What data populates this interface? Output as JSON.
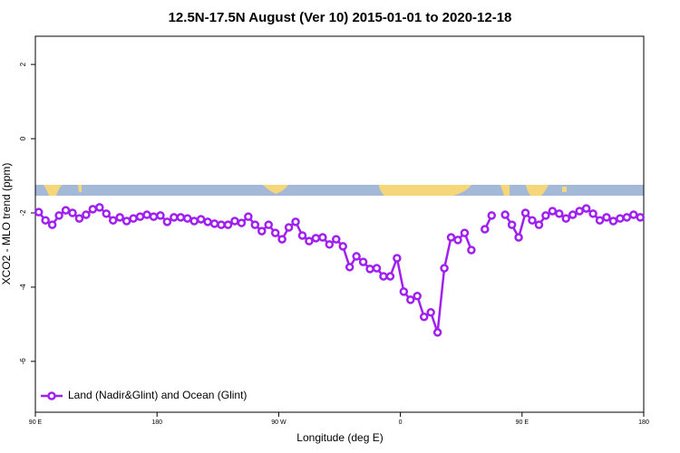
{
  "chart_data": {
    "type": "line",
    "title": "12.5N-17.5N August (Ver 10)   2015-01-01 to 2020-12-18",
    "x_label": "Longitude (deg E)",
    "y_label": "XCO2 - MLO trend (ppm)",
    "xlim": [
      90,
      540
    ],
    "ylim": [
      -7.37,
      2.76
    ],
    "xticks": [
      {
        "value": 90,
        "label": "90 E"
      },
      180,
      {
        "value": 270,
        "label": "90 W"
      },
      {
        "value": 360,
        "label": "0"
      },
      {
        "value": 450,
        "label": "90 E"
      },
      {
        "value": 540,
        "label": "180"
      }
    ],
    "yticks": [
      -6,
      -4,
      -2,
      0,
      2
    ],
    "legend_position": "bottomleft",
    "x": [
      92.5,
      97.5,
      102.5,
      107.5,
      112.5,
      117.5,
      122.5,
      127.5,
      132.5,
      137.5,
      142.5,
      147.5,
      152.5,
      157.5,
      162.5,
      167.5,
      172.5,
      177.5,
      182.5,
      187.5,
      192.5,
      197.5,
      202.5,
      207.5,
      212.5,
      217.5,
      222.5,
      227.5,
      232.5,
      237.5,
      242.5,
      247.5,
      252.5,
      257.5,
      262.5,
      267.5,
      272.5,
      277.5,
      282.5,
      287.5,
      292.5,
      297.5,
      302.5,
      307.5,
      312.5,
      317.5,
      322.5,
      327.5,
      332.5,
      337.5,
      342.5,
      347.5,
      352.5,
      357.5,
      362.5,
      367.5,
      372.5,
      377.5,
      382.5,
      387.5,
      392.5,
      397.5,
      402.5,
      407.5,
      412.5,
      417.5,
      422.5,
      427.5,
      432.5,
      437.5,
      442.5,
      447.5,
      452.5,
      457.5,
      462.5,
      467.5,
      472.5,
      477.5,
      482.5,
      487.5,
      492.5,
      497.5,
      502.5,
      507.5,
      512.5,
      517.5,
      522.5,
      527.5,
      532.5,
      537.5
    ],
    "series": [
      {
        "name": "Land (Nadir&Glint) and Ocean (Glint)",
        "color": "#a020f0",
        "values": [
          -1.98,
          -2.2,
          -2.32,
          -2.07,
          -1.93,
          -2.0,
          -2.15,
          -2.05,
          -1.9,
          -1.85,
          -2.02,
          -2.2,
          -2.12,
          -2.22,
          -2.15,
          -2.1,
          -2.05,
          -2.1,
          -2.07,
          -2.24,
          -2.12,
          -2.12,
          -2.15,
          -2.22,
          -2.17,
          -2.24,
          -2.29,
          -2.32,
          -2.32,
          -2.22,
          -2.27,
          -2.1,
          -2.32,
          -2.49,
          -2.32,
          -2.54,
          -2.71,
          -2.39,
          -2.24,
          -2.61,
          -2.76,
          -2.68,
          -2.66,
          -2.85,
          -2.71,
          -2.9,
          -3.46,
          -3.17,
          -3.32,
          -3.51,
          -3.49,
          -3.71,
          -3.71,
          -3.22,
          -4.12,
          -4.34,
          -4.24,
          -4.8,
          -4.68,
          -5.22,
          -3.49,
          -2.66,
          -2.73,
          -2.54,
          -3.0,
          null,
          -2.44,
          -2.07,
          null,
          -2.05,
          -2.32,
          -2.66,
          -2.0,
          -2.2,
          -2.32,
          -2.07,
          -1.95,
          -2.02,
          -2.15,
          -2.05,
          -1.95,
          -1.88,
          -2.02,
          -2.2,
          -2.12,
          -2.22,
          -2.15,
          -2.12,
          -2.05,
          -2.12
        ]
      }
    ]
  }
}
